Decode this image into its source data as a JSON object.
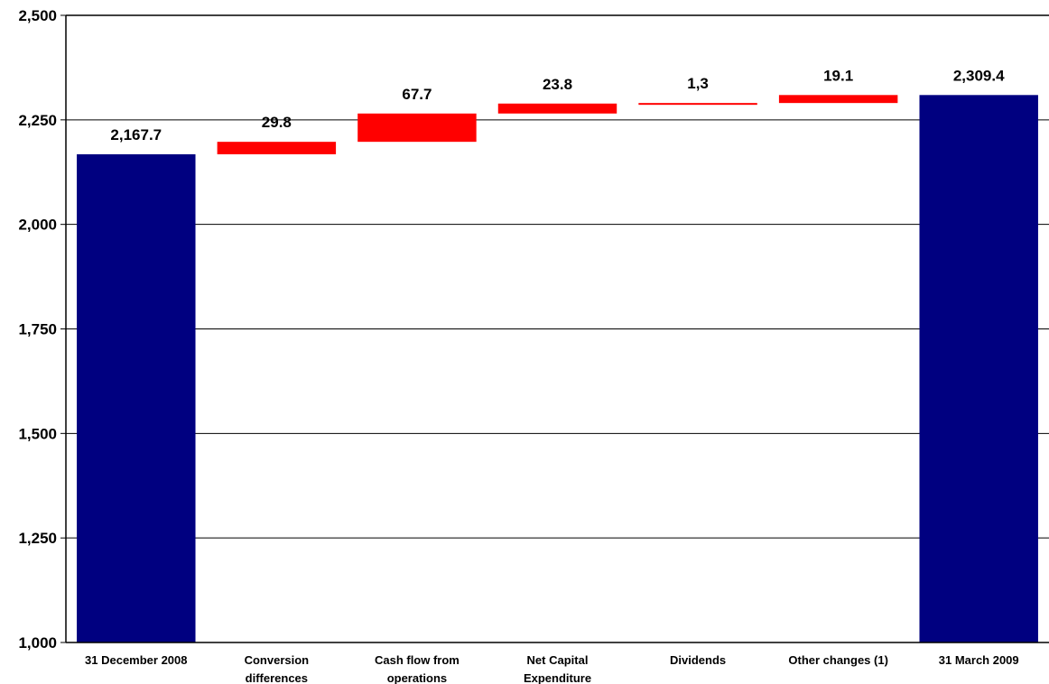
{
  "chart_data": {
    "type": "bar",
    "subtype": "waterfall",
    "title": "",
    "xlabel": "",
    "ylabel": "",
    "ylim": [
      1000,
      2500
    ],
    "yticks": [
      1000,
      1250,
      1500,
      1750,
      2000,
      2250,
      2500
    ],
    "ytick_labels": [
      "1,000",
      "1,250",
      "1,500",
      "1,750",
      "2,000",
      "2,250",
      "2,500"
    ],
    "grid": true,
    "legend": "none",
    "colors": {
      "total": "#000080",
      "change": "#FF0000",
      "grid": "#000000",
      "axis": "#000000"
    },
    "categories": [
      [
        "31 December 2008"
      ],
      [
        "Conversion",
        "differences"
      ],
      [
        "Cash flow from",
        "operations"
      ],
      [
        "Net Capital",
        "Expenditure"
      ],
      [
        "Dividends"
      ],
      [
        "Other changes (1)"
      ],
      [
        "31 March 2009"
      ]
    ],
    "bars": [
      {
        "kind": "total",
        "start": 1000,
        "end": 2167.7,
        "label": "2,167.7"
      },
      {
        "kind": "change",
        "start": 2167.7,
        "end": 2197.5,
        "label": "29.8"
      },
      {
        "kind": "change",
        "start": 2197.5,
        "end": 2265.2,
        "label": "67.7"
      },
      {
        "kind": "change",
        "start": 2265.2,
        "end": 2289.0,
        "label": "23.8"
      },
      {
        "kind": "change",
        "start": 2289.0,
        "end": 2290.3,
        "label": "1,3"
      },
      {
        "kind": "change",
        "start": 2290.3,
        "end": 2309.4,
        "label": "19.1"
      },
      {
        "kind": "total",
        "start": 1000,
        "end": 2309.4,
        "label": "2,309.4"
      }
    ]
  }
}
